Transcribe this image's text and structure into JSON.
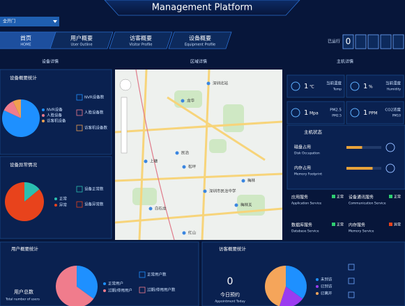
{
  "header": {
    "title": "Management Platform",
    "selector": "全开门"
  },
  "nav": {
    "tabs": [
      {
        "label": "首页",
        "sub": "HOME"
      },
      {
        "label": "用户概要",
        "sub": "User Outline"
      },
      {
        "label": "访客概要",
        "sub": "Visitor Profile"
      },
      {
        "label": "设备概要",
        "sub": "Equipment Profile"
      }
    ],
    "running_label": "已运行",
    "running_digit": "0"
  },
  "device": {
    "title": "设备详情",
    "summary": {
      "title": "设备概要统计",
      "legend": [
        "NVR设备",
        "人脸设备",
        "访客机设备"
      ],
      "stats": [
        "NVR设备数",
        "人脸设备数",
        "访客机设备数"
      ],
      "pie": {
        "values": [
          82,
          11,
          7
        ],
        "colors": [
          "#1e90ff",
          "#f07c8c",
          "#f0a050"
        ]
      }
    },
    "abnormal": {
      "title": "设备异常情况",
      "legend": [
        "正常",
        "异常"
      ],
      "stats": [
        "设备正常数",
        "设备异常数"
      ],
      "pie": {
        "values": [
          14,
          86
        ],
        "colors": [
          "#2bbfb0",
          "#e8431c"
        ]
      }
    }
  },
  "area": {
    "title": "区域详情",
    "labels": [
      "深圳北站",
      "龙华",
      "上塘",
      "民治",
      "白石龙",
      "松坪",
      "梅林",
      "红山",
      "深圳市民治中学",
      "梅林关"
    ]
  },
  "host": {
    "title": "主机详情",
    "sensors": [
      {
        "value": "1",
        "unit": "℃",
        "label": "当前温度",
        "sub": "Temp"
      },
      {
        "value": "1",
        "unit": "%",
        "label": "当前湿度",
        "sub": "Humidity"
      },
      {
        "value": "1",
        "unit": "Mpa",
        "label": "PM2.5",
        "sub": "PM2.5"
      },
      {
        "value": "1",
        "unit": "PPM",
        "label": "CO2浓度",
        "sub": "PM10"
      }
    ],
    "status": {
      "title": "主机状态",
      "items": [
        {
          "label": "磁盘占用",
          "sub": "Disk Occupation",
          "percent": 45
        },
        {
          "label": "内存占用",
          "sub": "Memory Footprint",
          "percent": 75
        }
      ]
    },
    "services": [
      {
        "label": "应用服务",
        "sub": "Application Service",
        "status": "正常",
        "color": "#2ecc71"
      },
      {
        "label": "设备通讯服务",
        "sub": "Communication Service",
        "status": "正常",
        "color": "#2ecc71"
      },
      {
        "label": "数据库服务",
        "sub": "Database Service",
        "status": "正常",
        "color": "#2ecc71"
      },
      {
        "label": "内存服务",
        "sub": "Memory Service",
        "status": "异常",
        "color": "#e8431c"
      }
    ]
  },
  "users": {
    "title": "用户概要统计",
    "total_label": "用户总数",
    "total_sub": "Total number of users",
    "legend": [
      "正常用户",
      "过期/停用用户"
    ],
    "stats": [
      "正常用户数",
      "过期/停用用户数"
    ],
    "pie": {
      "values": [
        35,
        65
      ],
      "colors": [
        "#1e90ff",
        "#f07c8c"
      ]
    }
  },
  "visitors": {
    "title": "访客概要统计",
    "count": 0,
    "count_label": "今日预约",
    "count_sub": "Appointment Today",
    "legend": [
      "未到访",
      "已到访",
      "已离开"
    ],
    "pie": {
      "values": [
        35,
        20,
        45
      ],
      "colors": [
        "#1e90ff",
        "#9b3cf0",
        "#f5a55a"
      ]
    }
  }
}
